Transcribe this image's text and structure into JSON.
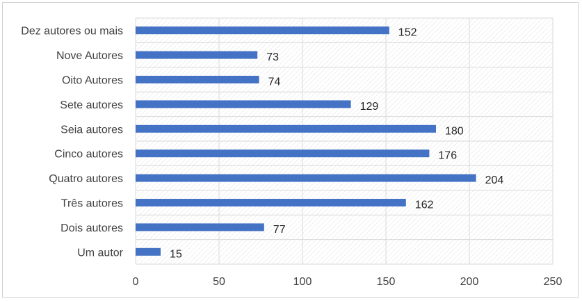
{
  "chart_data": {
    "type": "bar",
    "orientation": "horizontal",
    "categories": [
      "Um autor",
      "Dois autores",
      "Três autores",
      "Quatro autores",
      "Cinco autores",
      "Seia autores",
      "Sete autores",
      "Oito Autores",
      "Nove Autores",
      "Dez autores ou mais"
    ],
    "values": [
      15,
      77,
      162,
      204,
      176,
      180,
      129,
      74,
      73,
      152
    ],
    "title": "",
    "xlabel": "",
    "ylabel": "",
    "xlim": [
      0,
      250
    ],
    "xticks": [
      0,
      50,
      100,
      150,
      200,
      250
    ],
    "grid": "vertical",
    "data_labels": true,
    "colors": {
      "bar": "#4472c4",
      "grid": "#d9d9d9",
      "hatch": "#e2e2e2",
      "frame": "#d0d0d0"
    }
  }
}
